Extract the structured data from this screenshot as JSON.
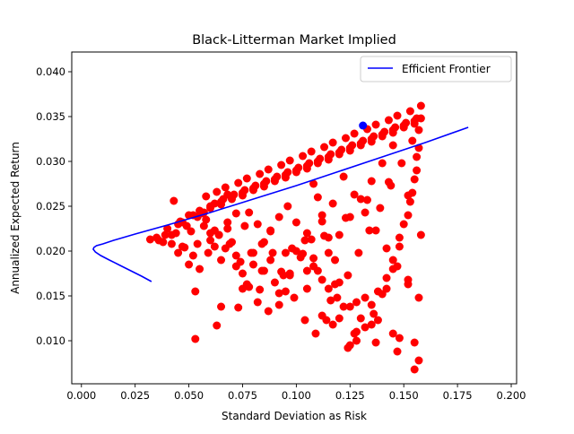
{
  "chart_data": {
    "type": "scatter",
    "title": "Black-Litterman Market Implied",
    "xlabel": "Standard Deviation as Risk",
    "ylabel": "Annualized Expected Return",
    "xlim": [
      -0.0045,
      0.2025
    ],
    "ylim": [
      0.0052,
      0.0422
    ],
    "xticks": [
      0.0,
      0.025,
      0.05,
      0.075,
      0.1,
      0.125,
      0.15,
      0.175,
      0.2
    ],
    "xtick_labels": [
      "0.000",
      "0.025",
      "0.050",
      "0.075",
      "0.100",
      "0.125",
      "0.150",
      "0.175",
      "0.200"
    ],
    "yticks": [
      0.01,
      0.015,
      0.02,
      0.025,
      0.03,
      0.035,
      0.04
    ],
    "ytick_labels": [
      "0.010",
      "0.015",
      "0.020",
      "0.025",
      "0.030",
      "0.035",
      "0.040"
    ],
    "grid": false,
    "legend": {
      "position": "top-right",
      "entries": [
        "Efficient Frontier"
      ]
    },
    "colors": {
      "frontier": "#0000ff",
      "portfolios": "#ff0000",
      "tangency": "#0000ff"
    },
    "frontier": {
      "name": "Efficient Frontier",
      "x": [
        0.0326,
        0.028,
        0.023,
        0.018,
        0.013,
        0.009,
        0.0065,
        0.0055,
        0.0058,
        0.007,
        0.01,
        0.015,
        0.025,
        0.04,
        0.06,
        0.08,
        0.1,
        0.12,
        0.14,
        0.16,
        0.18
      ],
      "y": [
        0.0166,
        0.0172,
        0.0178,
        0.0184,
        0.019,
        0.0195,
        0.0199,
        0.0202,
        0.0204,
        0.0206,
        0.0208,
        0.0212,
        0.0219,
        0.0229,
        0.0243,
        0.0258,
        0.0273,
        0.0289,
        0.0305,
        0.0321,
        0.0338
      ]
    },
    "tangency_portfolio": {
      "x": 0.131,
      "y": 0.034
    },
    "portfolios": {
      "x": [
        0.032,
        0.035,
        0.038,
        0.04,
        0.042,
        0.045,
        0.047,
        0.05,
        0.052,
        0.055,
        0.05,
        0.06,
        0.065,
        0.07,
        0.075,
        0.08,
        0.085,
        0.09,
        0.095,
        0.1,
        0.105,
        0.11,
        0.115,
        0.12,
        0.125,
        0.13,
        0.135,
        0.14,
        0.145,
        0.15,
        0.155,
        0.158,
        0.157,
        0.156,
        0.154,
        0.152,
        0.148,
        0.145,
        0.142,
        0.138,
        0.135,
        0.13,
        0.128,
        0.125,
        0.12,
        0.118,
        0.115,
        0.112,
        0.11,
        0.108,
        0.105,
        0.1,
        0.097,
        0.095,
        0.092,
        0.09,
        0.088,
        0.085,
        0.082,
        0.08,
        0.078,
        0.075,
        0.072,
        0.07,
        0.068,
        0.065,
        0.062,
        0.06,
        0.058,
        0.055,
        0.053,
        0.06,
        0.065,
        0.07,
        0.075,
        0.08,
        0.085,
        0.09,
        0.095,
        0.1,
        0.105,
        0.11,
        0.115,
        0.12,
        0.125,
        0.13,
        0.135,
        0.14,
        0.145,
        0.15,
        0.155,
        0.158,
        0.157,
        0.156,
        0.155,
        0.153,
        0.15,
        0.148,
        0.145,
        0.14,
        0.136,
        0.132,
        0.128,
        0.124,
        0.12,
        0.116,
        0.112,
        0.108,
        0.104,
        0.1,
        0.096,
        0.092,
        0.088,
        0.084,
        0.08,
        0.076,
        0.072,
        0.068,
        0.064,
        0.06,
        0.057,
        0.054,
        0.051,
        0.048,
        0.045,
        0.042,
        0.039,
        0.036,
        0.044,
        0.047,
        0.052,
        0.056,
        0.062,
        0.066,
        0.071,
        0.076,
        0.081,
        0.086,
        0.091,
        0.096,
        0.101,
        0.106,
        0.111,
        0.116,
        0.121,
        0.126,
        0.131,
        0.136,
        0.141,
        0.146,
        0.151,
        0.156,
        0.154,
        0.149,
        0.144,
        0.139,
        0.134,
        0.129,
        0.124,
        0.119,
        0.114,
        0.109,
        0.104,
        0.099,
        0.094,
        0.089,
        0.084,
        0.079,
        0.074,
        0.069,
        0.064,
        0.059,
        0.054,
        0.049,
        0.046,
        0.043,
        0.058,
        0.063,
        0.067,
        0.073,
        0.077,
        0.083,
        0.087,
        0.093,
        0.097,
        0.103,
        0.107,
        0.113,
        0.117,
        0.123,
        0.127,
        0.133,
        0.137,
        0.143,
        0.147,
        0.153,
        0.157,
        0.152,
        0.147,
        0.142,
        0.137,
        0.132,
        0.127,
        0.122,
        0.117,
        0.112,
        0.107,
        0.102,
        0.097,
        0.092,
        0.087,
        0.082,
        0.077,
        0.072,
        0.067,
        0.062,
        0.057,
        0.068,
        0.078,
        0.088,
        0.098,
        0.108,
        0.118,
        0.128,
        0.138,
        0.148,
        0.158,
        0.155,
        0.145,
        0.135,
        0.125,
        0.115,
        0.105,
        0.095,
        0.085,
        0.075,
        0.065,
        0.105,
        0.11,
        0.115,
        0.12,
        0.125,
        0.13,
        0.135,
        0.14,
        0.145,
        0.15,
        0.155,
        0.157,
        0.147,
        0.137,
        0.127,
        0.117,
        0.112,
        0.122,
        0.132,
        0.142,
        0.152,
        0.152,
        0.143,
        0.133,
        0.123,
        0.113,
        0.103,
        0.093,
        0.083,
        0.073,
        0.063,
        0.053
      ],
      "y": [
        0.0213,
        0.0215,
        0.021,
        0.0225,
        0.0218,
        0.023,
        0.0205,
        0.024,
        0.0195,
        0.0245,
        0.0185,
        0.025,
        0.0255,
        0.026,
        0.0265,
        0.027,
        0.0275,
        0.028,
        0.0285,
        0.029,
        0.0295,
        0.03,
        0.0305,
        0.031,
        0.0315,
        0.032,
        0.0325,
        0.033,
        0.0335,
        0.034,
        0.0345,
        0.0362,
        0.0315,
        0.029,
        0.0265,
        0.024,
        0.0215,
        0.019,
        0.017,
        0.0155,
        0.014,
        0.0125,
        0.011,
        0.0095,
        0.0165,
        0.019,
        0.0215,
        0.024,
        0.026,
        0.0275,
        0.022,
        0.02,
        0.0175,
        0.0155,
        0.014,
        0.0165,
        0.019,
        0.021,
        0.023,
        0.0185,
        0.016,
        0.0175,
        0.0195,
        0.021,
        0.0225,
        0.019,
        0.0205,
        0.022,
        0.0235,
        0.018,
        0.0155,
        0.0248,
        0.0252,
        0.0258,
        0.0262,
        0.0268,
        0.0272,
        0.0278,
        0.0282,
        0.0288,
        0.0292,
        0.0298,
        0.0302,
        0.0308,
        0.0312,
        0.0318,
        0.0322,
        0.0328,
        0.0332,
        0.0338,
        0.0342,
        0.0348,
        0.0335,
        0.0305,
        0.028,
        0.0255,
        0.023,
        0.0205,
        0.018,
        0.0152,
        0.013,
        0.0115,
        0.01,
        0.0092,
        0.0125,
        0.0145,
        0.0168,
        0.0192,
        0.0212,
        0.0232,
        0.025,
        0.0238,
        0.0222,
        0.0208,
        0.0198,
        0.0228,
        0.0242,
        0.0232,
        0.0218,
        0.0212,
        0.0228,
        0.0238,
        0.0222,
        0.0204,
        0.0198,
        0.0208,
        0.0218,
        0.0212,
        0.022,
        0.0232,
        0.024,
        0.0242,
        0.0253,
        0.0258,
        0.0263,
        0.0268,
        0.0273,
        0.0278,
        0.0283,
        0.0288,
        0.0293,
        0.0298,
        0.0303,
        0.0308,
        0.0313,
        0.0318,
        0.0323,
        0.0328,
        0.0333,
        0.0338,
        0.0343,
        0.0348,
        0.0323,
        0.0298,
        0.0273,
        0.0248,
        0.0223,
        0.0198,
        0.0173,
        0.0148,
        0.0123,
        0.0108,
        0.0123,
        0.0148,
        0.0173,
        0.0198,
        0.0178,
        0.0198,
        0.0188,
        0.0208,
        0.0218,
        0.0198,
        0.0208,
        0.0228,
        0.0233,
        0.0256,
        0.0261,
        0.0266,
        0.0271,
        0.0276,
        0.0281,
        0.0286,
        0.0291,
        0.0296,
        0.0301,
        0.0306,
        0.0311,
        0.0316,
        0.0321,
        0.0326,
        0.0331,
        0.0336,
        0.0341,
        0.0346,
        0.0351,
        0.0356,
        0.0148,
        0.0163,
        0.0183,
        0.0203,
        0.0223,
        0.0243,
        0.0263,
        0.0283,
        0.0253,
        0.0233,
        0.0213,
        0.0193,
        0.0173,
        0.0153,
        0.0133,
        0.0143,
        0.0163,
        0.0183,
        0.0203,
        0.0223,
        0.0243,
        0.0263,
        0.0243,
        0.0223,
        0.0203,
        0.0183,
        0.0163,
        0.0143,
        0.0123,
        0.0103,
        0.0218,
        0.0098,
        0.0108,
        0.0118,
        0.0138,
        0.0158,
        0.0178,
        0.0198,
        0.0178,
        0.0158,
        0.0138,
        0.0158,
        0.0178,
        0.0198,
        0.0218,
        0.0238,
        0.0258,
        0.0278,
        0.0298,
        0.0318,
        0.0338,
        0.0068,
        0.0078,
        0.0088,
        0.0098,
        0.0108,
        0.0118,
        0.0128,
        0.0138,
        0.0148,
        0.0158,
        0.0168,
        0.0262,
        0.0277,
        0.0257,
        0.0237,
        0.0217,
        0.0197,
        0.0177,
        0.0157,
        0.0137,
        0.0117,
        0.0102
      ]
    }
  }
}
